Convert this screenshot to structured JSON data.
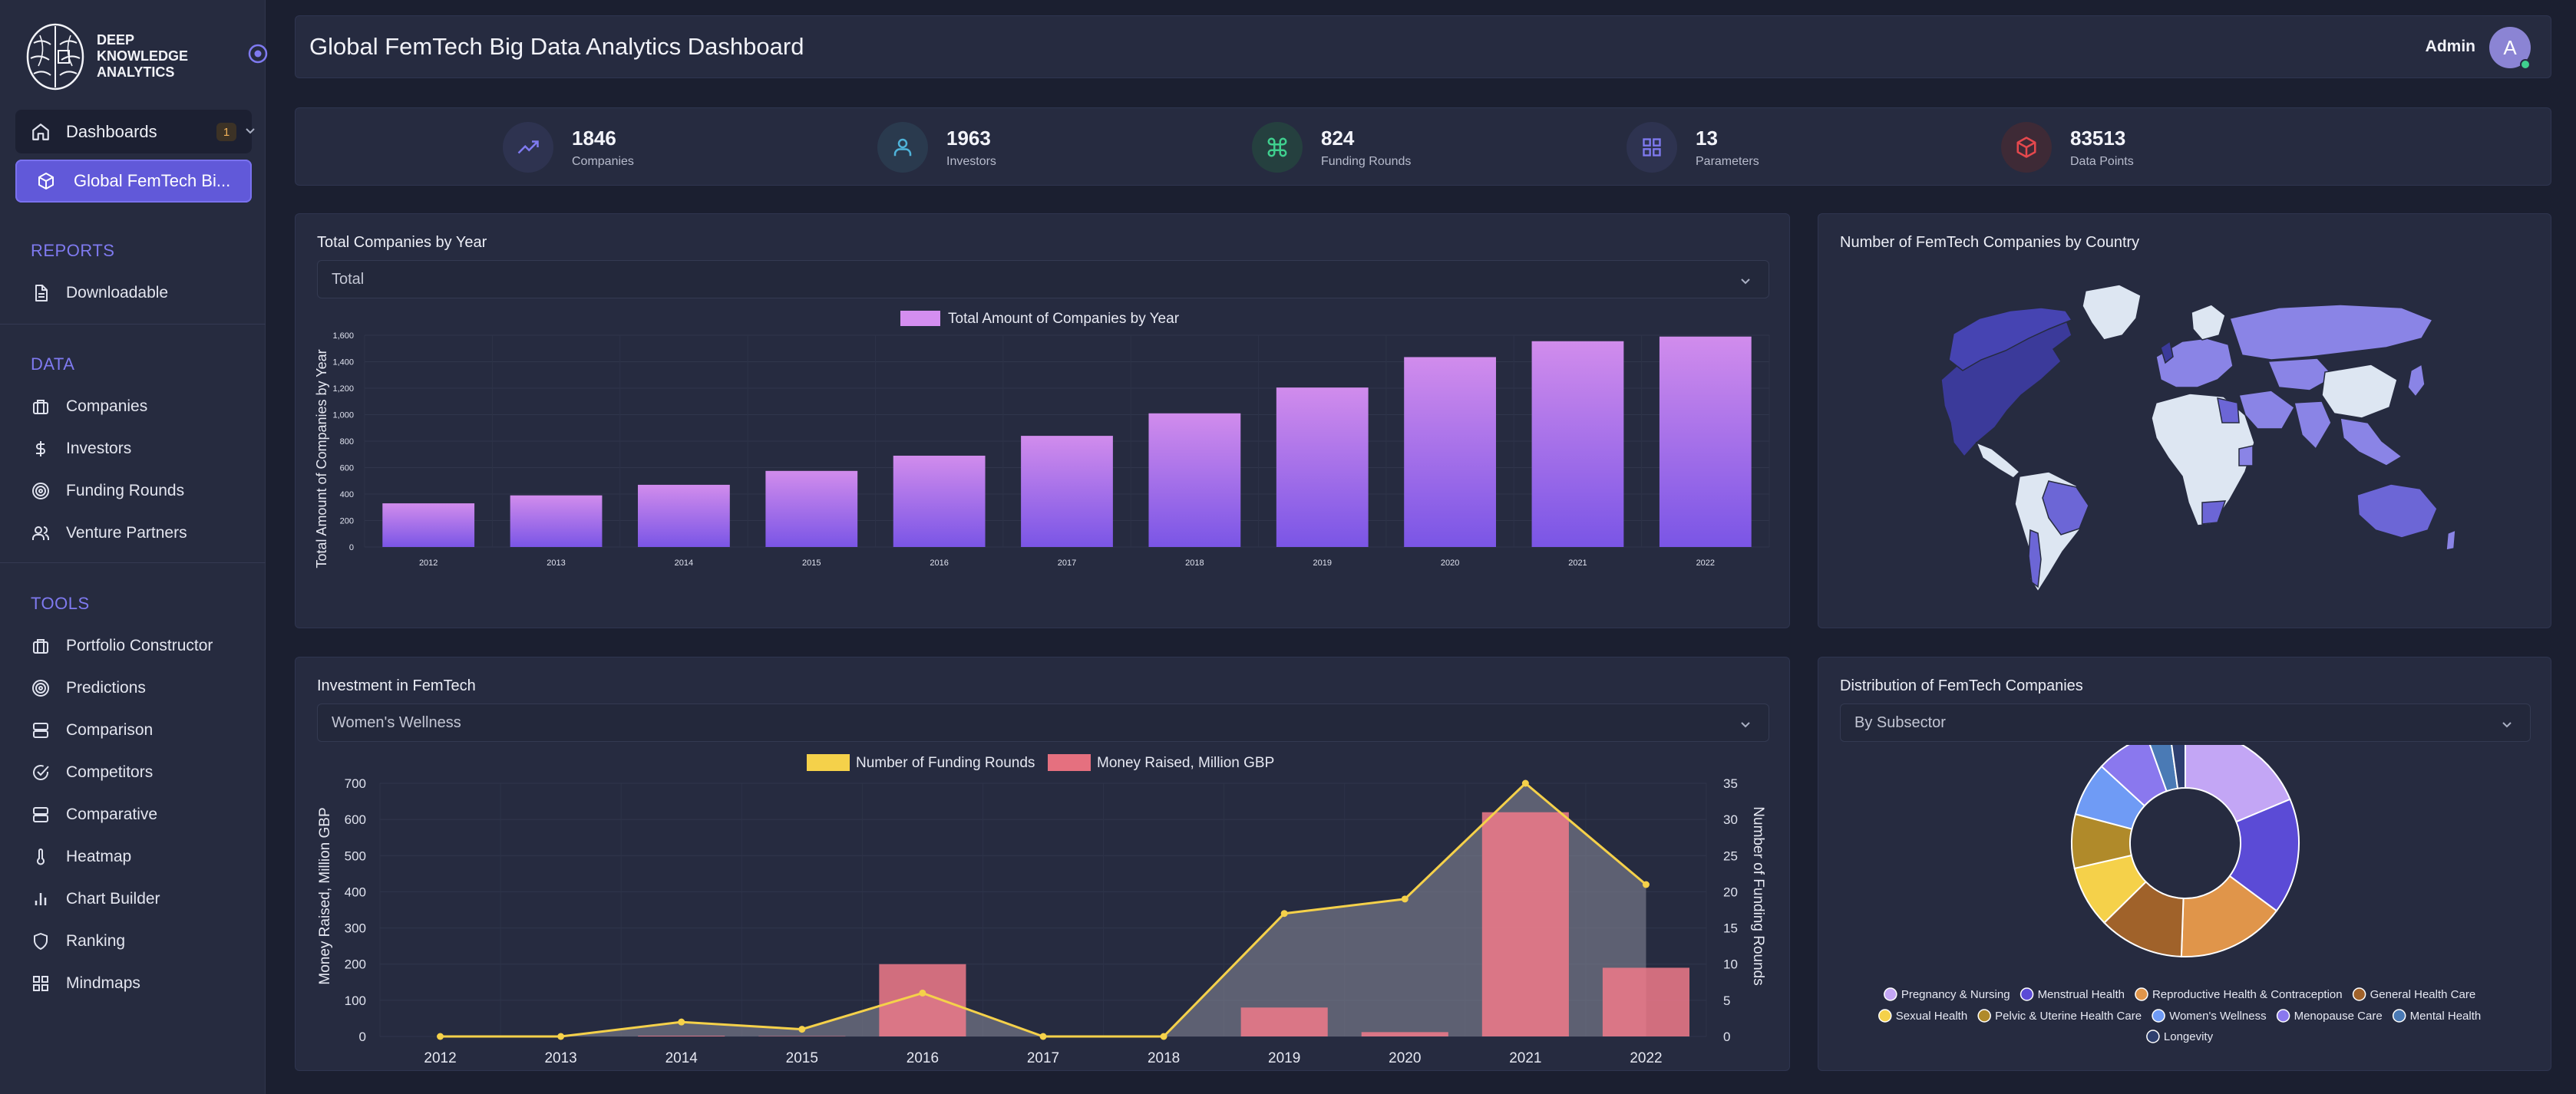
{
  "brand": {
    "line1": "DEEP",
    "line2": "KNOWLEDGE",
    "line3": "ANALYTICS"
  },
  "sidebar": {
    "dashboards_label": "Dashboards",
    "dashboards_badge": "1",
    "active_item": "Global FemTech Bi...",
    "reports_heading": "REPORTS",
    "reports": [
      {
        "label": "Downloadable",
        "icon": "document-icon"
      }
    ],
    "data_heading": "DATA",
    "data": [
      {
        "label": "Companies",
        "icon": "briefcase-icon"
      },
      {
        "label": "Investors",
        "icon": "dollar-icon"
      },
      {
        "label": "Funding Rounds",
        "icon": "target-icon"
      },
      {
        "label": "Venture Partners",
        "icon": "users-icon"
      }
    ],
    "tools_heading": "TOOLS",
    "tools": [
      {
        "label": "Portfolio Constructor",
        "icon": "briefcase-icon"
      },
      {
        "label": "Predictions",
        "icon": "target-icon"
      },
      {
        "label": "Comparison",
        "icon": "server-icon"
      },
      {
        "label": "Competitors",
        "icon": "check-circle-icon"
      },
      {
        "label": "Comparative",
        "icon": "server-icon"
      },
      {
        "label": "Heatmap",
        "icon": "thermometer-icon"
      },
      {
        "label": "Chart Builder",
        "icon": "bar-chart-icon"
      },
      {
        "label": "Ranking",
        "icon": "shield-icon"
      },
      {
        "label": "Mindmaps",
        "icon": "grid-icon"
      }
    ]
  },
  "header": {
    "title": "Global FemTech Big Data Analytics Dashboard",
    "user": "Admin",
    "avatar_letter": "A"
  },
  "stats": [
    {
      "value": "1846",
      "label": "Companies",
      "icon": "trending-up-icon",
      "color": "#7f7af0"
    },
    {
      "value": "1963",
      "label": "Investors",
      "icon": "user-icon",
      "color": "#4fb3d9"
    },
    {
      "value": "824",
      "label": "Funding Rounds",
      "icon": "command-icon",
      "color": "#3fcf8e"
    },
    {
      "value": "13",
      "label": "Parameters",
      "icon": "grid-icon",
      "color": "#7f7af0"
    },
    {
      "value": "83513",
      "label": "Data Points",
      "icon": "box-icon",
      "color": "#e5484d"
    }
  ],
  "companies_card": {
    "title": "Total Companies by Year",
    "select_value": "Total"
  },
  "map_card": {
    "title": "Number of FemTech Companies by Country"
  },
  "invest_card": {
    "title": "Investment in FemTech",
    "select_value": "Women's Wellness"
  },
  "dist_card": {
    "title": "Distribution of FemTech Companies",
    "select_value": "By Subsector"
  },
  "chart_data": [
    {
      "type": "bar",
      "legend": "Total Amount of Companies by Year",
      "ylabel": "Total Amount of Companies by Year",
      "categories": [
        "2012",
        "2013",
        "2014",
        "2015",
        "2016",
        "2017",
        "2018",
        "2019",
        "2020",
        "2021",
        "2022"
      ],
      "values": [
        330,
        390,
        470,
        575,
        690,
        840,
        1010,
        1205,
        1435,
        1555,
        1590
      ],
      "ylim": [
        0,
        1600
      ],
      "yticks": [
        "0",
        "200",
        "400",
        "600",
        "800",
        "1,000",
        "1,200",
        "1,400",
        "1,600"
      ],
      "color": "#a77de8"
    },
    {
      "type": "bar+line",
      "categories": [
        "2012",
        "2013",
        "2014",
        "2015",
        "2016",
        "2017",
        "2018",
        "2019",
        "2020",
        "2021",
        "2022"
      ],
      "series": [
        {
          "name": "Money Raised, Million GBP",
          "type": "bar",
          "axis": "left",
          "color": "#f07a8a",
          "values": [
            0,
            0,
            2,
            1,
            200,
            0,
            0,
            80,
            12,
            620,
            190
          ]
        },
        {
          "name": "Number of Funding Rounds",
          "type": "line",
          "axis": "right",
          "color": "#f5d14a",
          "values": [
            0,
            0,
            2,
            1,
            6,
            0,
            0,
            17,
            19,
            35,
            21
          ]
        }
      ],
      "ylabel_left": "Money Raised, Million GBP",
      "ylabel_right": "Number of Funding Rounds",
      "ylim_left": [
        0,
        700
      ],
      "ylim_right": [
        0,
        35
      ],
      "yticks_left": [
        "0",
        "100",
        "200",
        "300",
        "400",
        "500",
        "600",
        "700"
      ],
      "yticks_right": [
        "0",
        "5",
        "10",
        "15",
        "20",
        "25",
        "30",
        "35"
      ]
    },
    {
      "type": "pie",
      "style": "doughnut",
      "labels": [
        "Pregnancy & Nursing",
        "Menstrual Health",
        "Reproductive Health & Contraception",
        "General Health Care",
        "Sexual Health",
        "Pelvic & Uterine Health Care",
        "Women's Wellness",
        "Menopause Care",
        "Mental Health",
        "Longevity"
      ],
      "values": [
        17,
        15,
        14,
        11,
        8,
        7,
        7,
        7,
        3,
        2
      ],
      "colors": [
        "#c3a6f5",
        "#5b4bd6",
        "#e0954a",
        "#a0622a",
        "#f5d14a",
        "#b08a2a",
        "#6f9bf5",
        "#8a78ee",
        "#4a7ab5",
        "#2e3f6e"
      ]
    }
  ]
}
